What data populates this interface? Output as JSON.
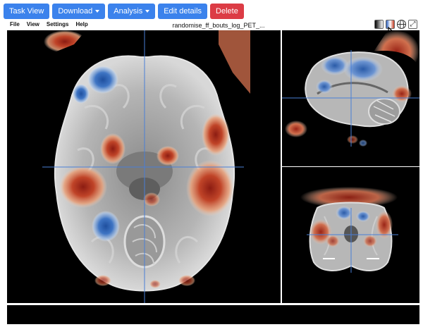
{
  "toolbar": {
    "task_view": "Task View",
    "download": "Download",
    "analysis": "Analysis",
    "edit_details": "Edit details",
    "delete": "Delete"
  },
  "menu": {
    "file": "File",
    "view": "View",
    "settings": "Settings",
    "help": "Help"
  },
  "viewer": {
    "title": "randomise_ff_bouts_log_PET_...",
    "tools": [
      "grayscale-colormap-icon",
      "heat-colormap-icon",
      "globe-icon",
      "fullscreen-icon"
    ]
  },
  "colors": {
    "button_primary": "#3b82ec",
    "button_danger": "#dc3c45",
    "crosshair": "#4a7fd6",
    "positive_overlay": "#b53a26",
    "negative_overlay": "#3a6fc4",
    "viewer_background": "#000000"
  }
}
